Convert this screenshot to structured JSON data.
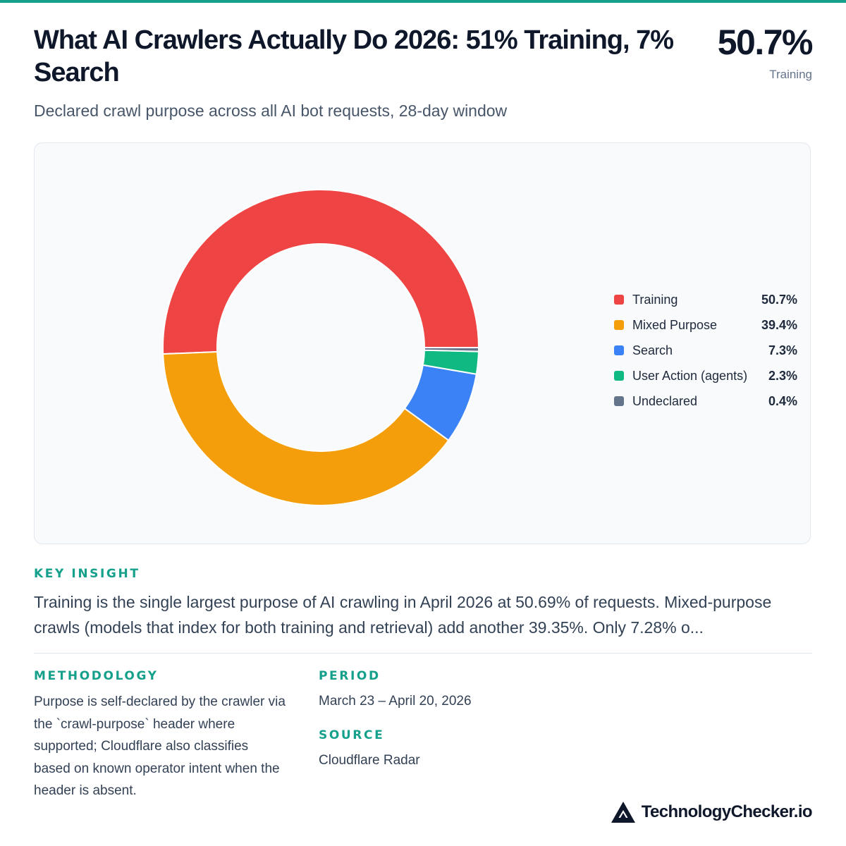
{
  "header": {
    "title": "What AI Crawlers Actually Do 2026: 51% Training, 7% Search",
    "subtitle": "Declared crawl purpose across all AI bot requests, 28-day window",
    "headline_value": "50.7%",
    "headline_label": "Training"
  },
  "chart_data": {
    "type": "pie",
    "variant": "donut",
    "series": [
      {
        "name": "Training",
        "value": 50.7,
        "label": "50.7%",
        "color": "#ef4444"
      },
      {
        "name": "Mixed Purpose",
        "value": 39.4,
        "label": "39.4%",
        "color": "#f59e0b"
      },
      {
        "name": "Search",
        "value": 7.3,
        "label": "7.3%",
        "color": "#3b82f6"
      },
      {
        "name": "User Action (agents)",
        "value": 2.3,
        "label": "2.3%",
        "color": "#10b981"
      },
      {
        "name": "Undeclared",
        "value": 0.4,
        "label": "0.4%",
        "color": "#64748b"
      }
    ],
    "legend_position": "right"
  },
  "key_insight": {
    "heading": "KEY INSIGHT",
    "text": "Training is the single largest purpose of AI crawling in April 2026 at 50.69% of requests. Mixed-purpose crawls (models that index for both training and retrieval) add another 39.35%. Only 7.28% o..."
  },
  "methodology": {
    "heading": "METHODOLOGY",
    "text": "Purpose is self-declared by the crawler via the `crawl-purpose` header where supported; Cloudflare also classifies based on known operator intent when the header is absent."
  },
  "period": {
    "heading": "PERIOD",
    "text": "March 23 – April 20, 2026"
  },
  "source": {
    "heading": "SOURCE",
    "text": "Cloudflare Radar"
  },
  "brand": {
    "name": "TechnologyChecker.io",
    "icon": "triangle-logo-icon"
  },
  "colors": {
    "accent": "#14a08a",
    "card_background": "#f8fafc"
  }
}
